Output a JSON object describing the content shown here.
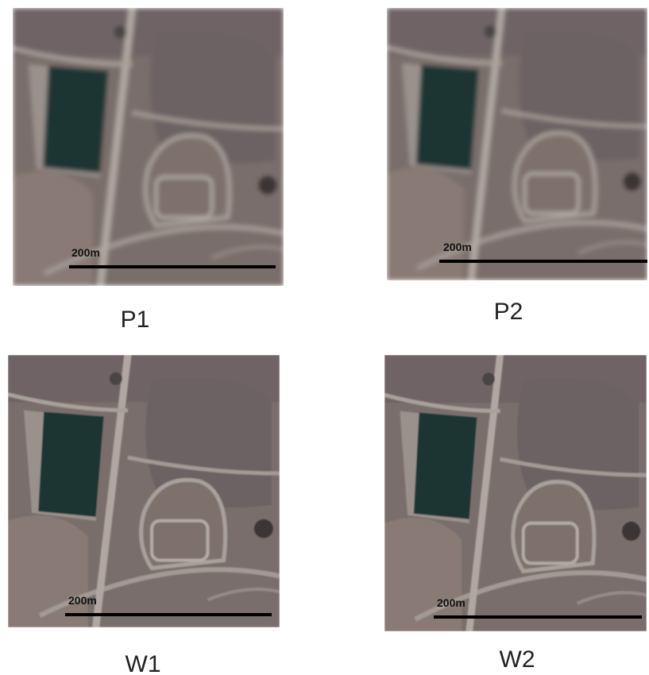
{
  "panels": [
    {
      "label": "P1",
      "scale_label": "200m"
    },
    {
      "label": "P2",
      "scale_label": "200m"
    },
    {
      "label": "W1",
      "scale_label": "200m"
    },
    {
      "label": "W2",
      "scale_label": "200m"
    }
  ]
}
